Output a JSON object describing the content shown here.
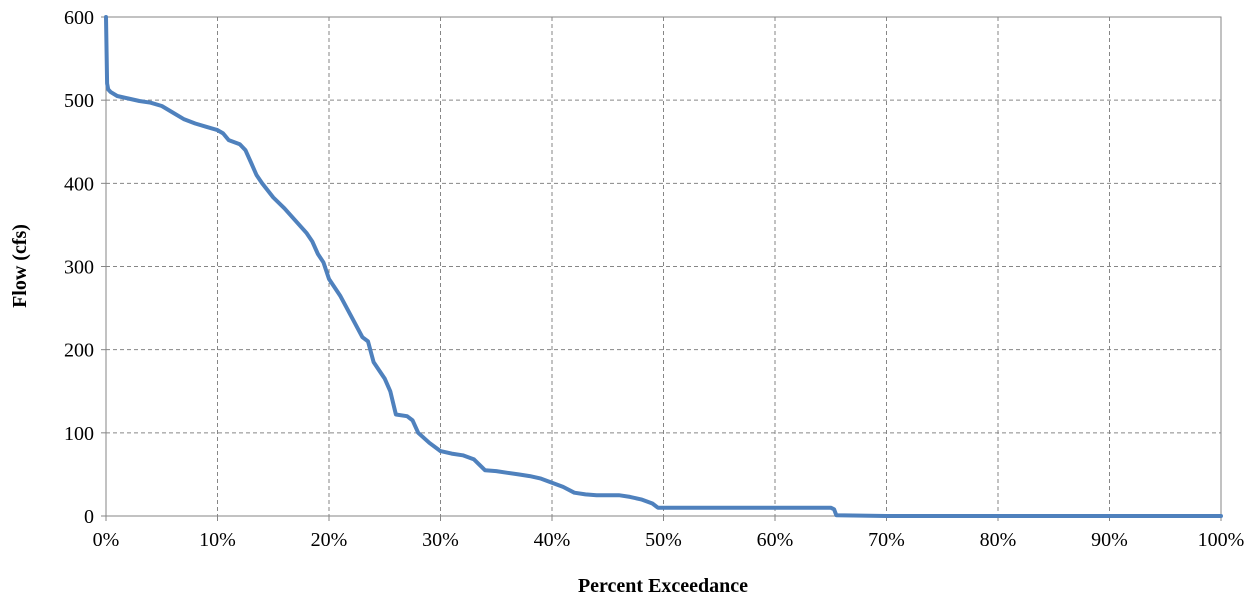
{
  "chart_data": {
    "type": "line",
    "title": "",
    "xlabel": "Percent Exceedance",
    "ylabel": "Flow (cfs)",
    "xlim": [
      0,
      100
    ],
    "ylim": [
      0,
      600
    ],
    "x_ticks": [
      0,
      10,
      20,
      30,
      40,
      50,
      60,
      70,
      80,
      90,
      100
    ],
    "x_tick_labels": [
      "0%",
      "10%",
      "20%",
      "30%",
      "40%",
      "50%",
      "60%",
      "70%",
      "80%",
      "90%",
      "100%"
    ],
    "y_ticks": [
      0,
      100,
      200,
      300,
      400,
      500,
      600
    ],
    "y_tick_labels": [
      "0",
      "100",
      "200",
      "300",
      "400",
      "500",
      "600"
    ],
    "grid": true,
    "legend": "none",
    "line_color": "#4f81bd",
    "series": [
      {
        "x": [
          0,
          0.1,
          0.2,
          0.4,
          1,
          2,
          3,
          4,
          5,
          6,
          7,
          8,
          9,
          10,
          10.5,
          11,
          12,
          12.5,
          13,
          13.5,
          14,
          15,
          16,
          17,
          18,
          18.5,
          19,
          19.5,
          20,
          21,
          22,
          23,
          23.5,
          24,
          25,
          25.5,
          26,
          27,
          27.5,
          28,
          29,
          30,
          31,
          32,
          33,
          34,
          35,
          36,
          37,
          38,
          39,
          40,
          41,
          42,
          43,
          44,
          45,
          46,
          47,
          48,
          49,
          49.5,
          50,
          55,
          60,
          65,
          65.3,
          65.5,
          70,
          80,
          90,
          100
        ],
        "y": [
          600,
          520,
          513,
          510,
          505,
          502,
          499,
          497,
          493,
          485,
          477,
          472,
          468,
          464,
          460,
          452,
          447,
          440,
          425,
          410,
          400,
          383,
          370,
          355,
          340,
          330,
          315,
          305,
          285,
          265,
          240,
          215,
          210,
          185,
          165,
          150,
          122,
          120,
          115,
          100,
          88,
          78,
          75,
          73,
          68,
          55,
          54,
          52,
          50,
          48,
          45,
          40,
          35,
          28,
          26,
          25,
          25,
          25,
          23,
          20,
          15,
          10,
          10,
          10,
          10,
          10,
          8,
          1,
          0,
          0,
          0,
          0
        ]
      }
    ]
  }
}
